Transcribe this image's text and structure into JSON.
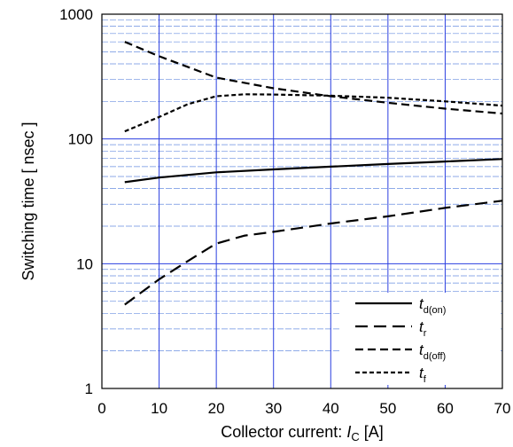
{
  "chart_data": {
    "type": "line",
    "xlabel_prefix": "Collector current: ",
    "xlabel_var": "I",
    "xlabel_sub": "C",
    "xlabel_unit": " [A]",
    "ylabel": "Switching time  [ nsec ]",
    "xlim": [
      0,
      70
    ],
    "ylim": [
      1,
      1000
    ],
    "yscale": "log",
    "x_ticks": [
      0,
      10,
      20,
      30,
      40,
      50,
      60,
      70
    ],
    "y_ticks": [
      1,
      10,
      100,
      1000
    ],
    "grid": true,
    "legend_position": "bottom-right",
    "series": [
      {
        "name": "t",
        "sub": "d(on)",
        "style": "solid",
        "x": [
          4,
          10,
          20,
          30,
          40,
          50,
          60,
          70
        ],
        "y": [
          45,
          49,
          54,
          57,
          60,
          63,
          66,
          69
        ]
      },
      {
        "name": "t",
        "sub": "r",
        "style": "longdash",
        "x": [
          4,
          10,
          15,
          20,
          25,
          30,
          40,
          50,
          60,
          70
        ],
        "y": [
          4.7,
          7.5,
          10.5,
          14.5,
          16.8,
          18,
          21,
          24,
          28,
          32
        ]
      },
      {
        "name": "t",
        "sub": "d(off)",
        "style": "dash",
        "x": [
          4,
          10,
          20,
          30,
          40,
          50,
          60,
          70
        ],
        "y": [
          600,
          460,
          310,
          255,
          220,
          195,
          175,
          160
        ]
      },
      {
        "name": "t",
        "sub": "f",
        "style": "shortdash",
        "x": [
          4,
          10,
          15,
          20,
          25,
          30,
          40,
          50,
          60,
          70
        ],
        "y": [
          115,
          150,
          190,
          220,
          228,
          227,
          222,
          214,
          200,
          185
        ]
      }
    ]
  }
}
